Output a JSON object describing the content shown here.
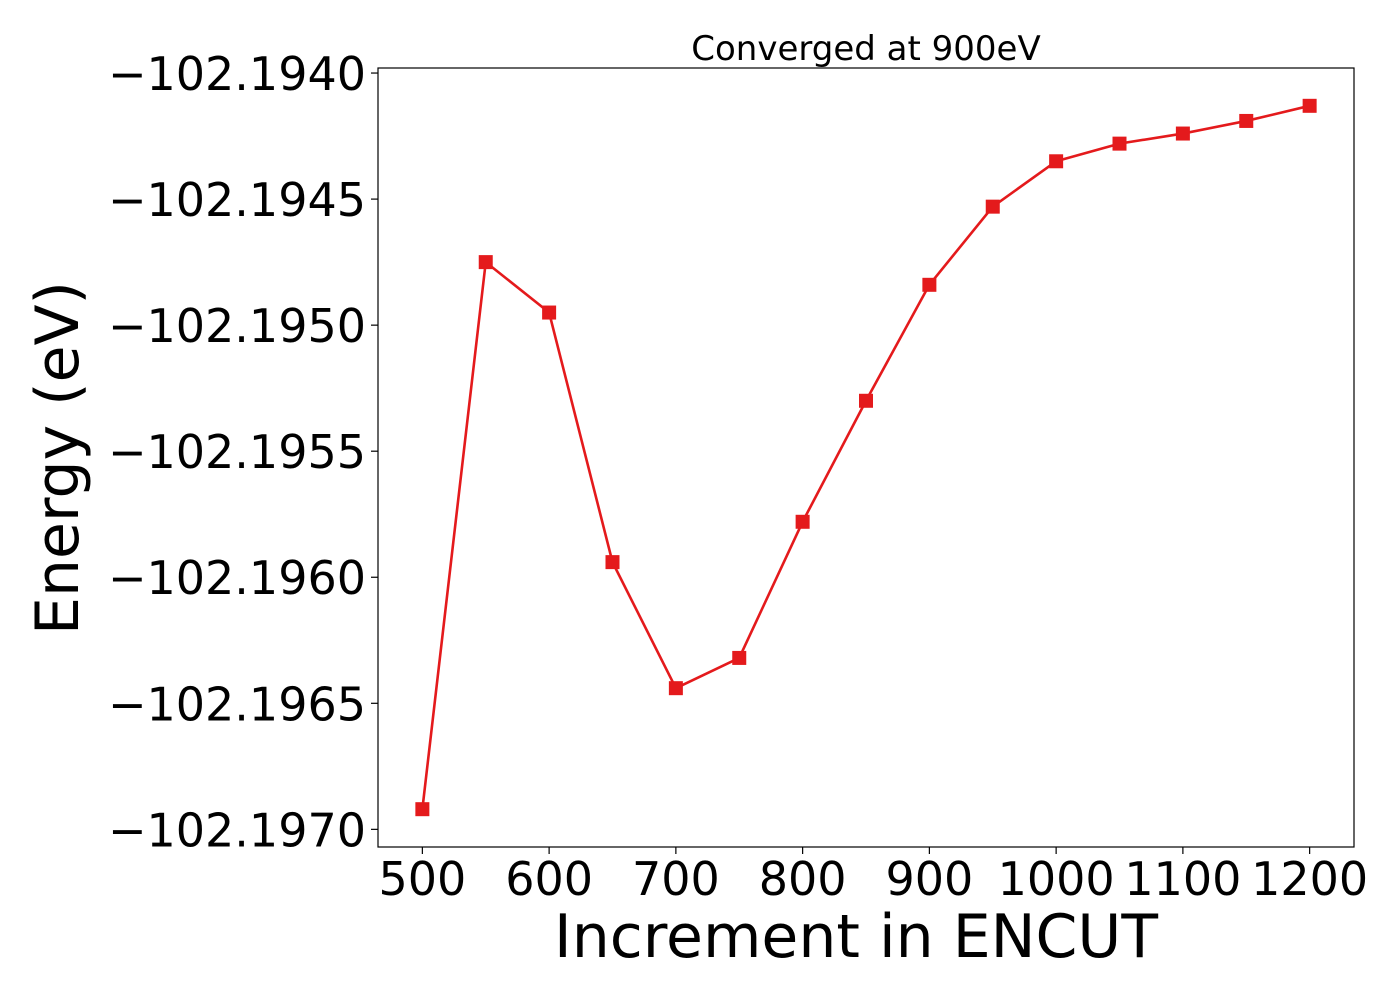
{
  "chart_data": {
    "type": "line",
    "title": "Converged at 900eV",
    "xlabel": "Increment in ENCUT",
    "ylabel": "Energy (eV)",
    "xlim": [
      465,
      1235
    ],
    "ylim": [
      -102.19707,
      -102.19398
    ],
    "x_ticks": [
      500,
      600,
      700,
      800,
      900,
      1000,
      1100,
      1200
    ],
    "x_tick_labels": [
      "500",
      "600",
      "700",
      "800",
      "900",
      "1000",
      "1100",
      "1200"
    ],
    "y_ticks": [
      -102.194,
      -102.1945,
      -102.195,
      -102.1955,
      -102.196,
      -102.1965,
      -102.197
    ],
    "y_tick_labels": [
      "−102.1940",
      "−102.1945",
      "−102.1950",
      "−102.1955",
      "−102.1960",
      "−102.1965",
      "−102.1970"
    ],
    "grid": false,
    "series": [
      {
        "color": "#e41a1c",
        "marker": "square",
        "x": [
          500,
          550,
          600,
          650,
          700,
          750,
          800,
          850,
          900,
          950,
          1000,
          1050,
          1100,
          1150,
          1200
        ],
        "y": [
          -102.19692,
          -102.19475,
          -102.19495,
          -102.19594,
          -102.19644,
          -102.19632,
          -102.19578,
          -102.1953,
          -102.19484,
          -102.19453,
          -102.19435,
          -102.19428,
          -102.19424,
          -102.19419,
          -102.19413
        ]
      }
    ]
  }
}
